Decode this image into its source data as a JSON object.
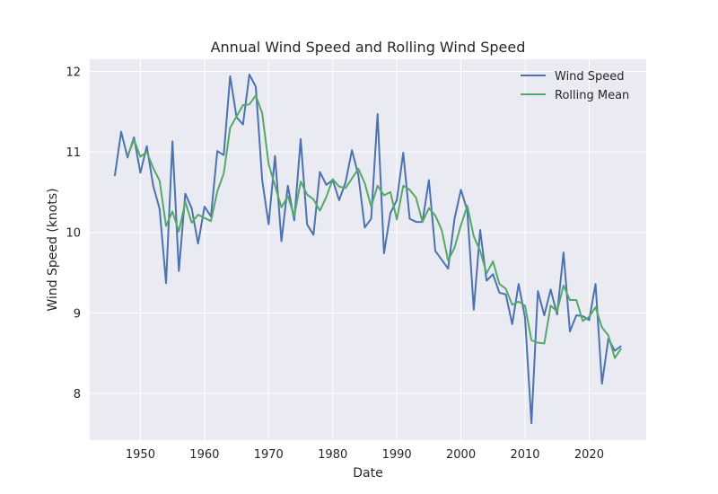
{
  "chart_data": {
    "type": "line",
    "title": "Annual Wind Speed and Rolling Wind Speed",
    "xlabel": "Date",
    "ylabel": "Wind Speed (knots)",
    "xlim": [
      1942.1,
      2028.9
    ],
    "ylim": [
      7.42,
      12.15
    ],
    "x_ticks": [
      1950,
      1960,
      1970,
      1980,
      1990,
      2000,
      2010,
      2020
    ],
    "y_ticks": [
      8,
      9,
      10,
      11,
      12
    ],
    "grid": true,
    "legend_position": "top-right",
    "x": [
      1946,
      1947,
      1948,
      1949,
      1950,
      1951,
      1952,
      1953,
      1954,
      1955,
      1956,
      1957,
      1958,
      1959,
      1960,
      1961,
      1962,
      1963,
      1964,
      1965,
      1966,
      1967,
      1968,
      1969,
      1970,
      1971,
      1972,
      1973,
      1974,
      1975,
      1976,
      1977,
      1978,
      1979,
      1980,
      1981,
      1982,
      1983,
      1984,
      1985,
      1986,
      1987,
      1988,
      1989,
      1990,
      1991,
      1992,
      1993,
      1994,
      1995,
      1996,
      1997,
      1998,
      1999,
      2000,
      2001,
      2002,
      2003,
      2004,
      2005,
      2006,
      2007,
      2008,
      2009,
      2010,
      2011,
      2012,
      2013,
      2014,
      2015,
      2016,
      2017,
      2018,
      2019,
      2020,
      2021,
      2022,
      2023,
      2024,
      2025
    ],
    "series": [
      {
        "name": "Wind Speed",
        "color": "#4c72b0",
        "values": [
          10.7,
          11.25,
          10.93,
          11.18,
          10.74,
          11.07,
          10.58,
          10.29,
          9.37,
          11.13,
          9.52,
          10.48,
          10.3,
          9.86,
          10.32,
          10.2,
          11.01,
          10.96,
          11.94,
          11.43,
          11.34,
          11.96,
          11.81,
          10.65,
          10.1,
          10.95,
          9.89,
          10.58,
          10.15,
          11.16,
          10.1,
          9.97,
          10.75,
          10.59,
          10.65,
          10.4,
          10.62,
          11.02,
          10.71,
          10.06,
          10.17,
          11.47,
          9.74,
          10.24,
          10.4,
          10.99,
          10.17,
          10.13,
          10.13,
          10.65,
          9.77,
          9.66,
          9.55,
          10.17,
          10.53,
          10.27,
          9.04,
          10.03,
          9.4,
          9.48,
          9.25,
          9.23,
          8.86,
          9.36,
          8.94,
          7.63,
          9.27,
          8.97,
          9.29,
          8.98,
          9.75,
          8.77,
          8.97,
          8.96,
          8.91,
          9.36,
          8.12,
          8.68,
          8.53,
          8.59
        ]
      },
      {
        "name": "Rolling Mean",
        "color": "#55a868",
        "values": [
          null,
          null,
          10.95,
          11.15,
          10.94,
          11.0,
          10.8,
          10.64,
          10.08,
          10.26,
          10.01,
          10.38,
          10.12,
          10.22,
          10.18,
          10.14,
          10.51,
          10.73,
          11.3,
          11.44,
          11.58,
          11.59,
          11.7,
          11.48,
          10.85,
          10.58,
          10.31,
          10.45,
          10.2,
          10.63,
          10.47,
          10.41,
          10.27,
          10.44,
          10.66,
          10.57,
          10.55,
          10.67,
          10.79,
          10.61,
          10.32,
          10.58,
          10.46,
          10.5,
          10.16,
          10.58,
          10.53,
          10.43,
          10.13,
          10.3,
          10.21,
          10.03,
          9.65,
          9.81,
          10.09,
          10.33,
          9.95,
          9.77,
          9.49,
          9.64,
          9.36,
          9.3,
          9.1,
          9.14,
          9.09,
          8.66,
          8.63,
          8.62,
          9.09,
          9.02,
          9.34,
          9.16,
          9.16,
          8.9,
          8.95,
          9.07,
          8.82,
          8.72,
          8.44,
          8.56
        ]
      }
    ]
  }
}
